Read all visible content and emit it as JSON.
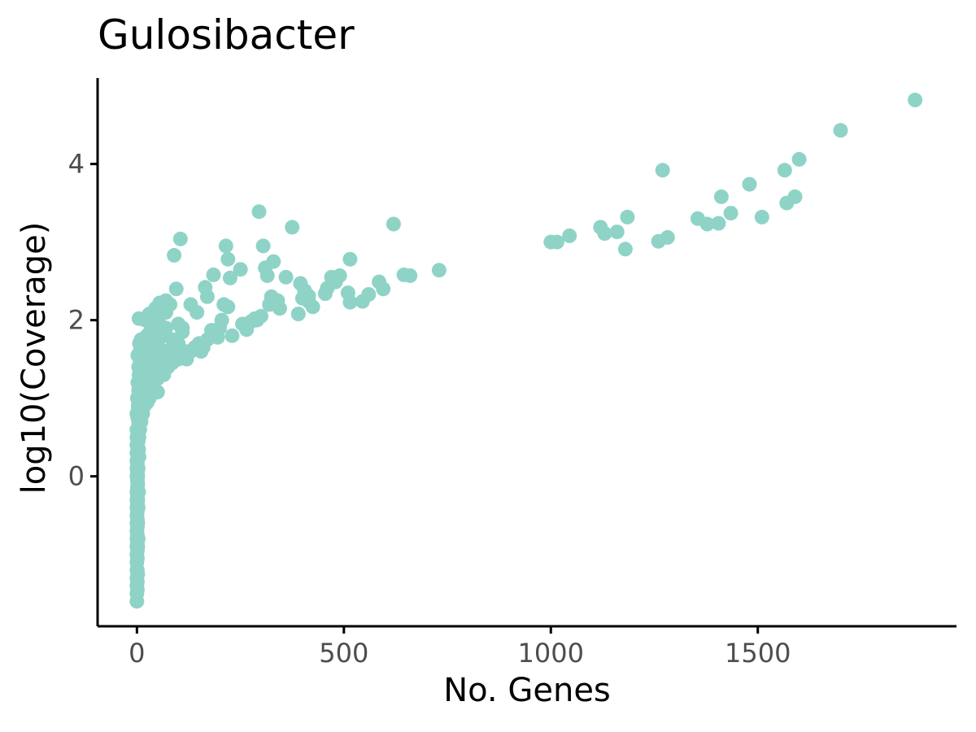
{
  "chart_data": {
    "type": "scatter",
    "title": "Gulosibacter",
    "xlabel": "No. Genes",
    "ylabel": "log10(Coverage)",
    "xlim": [
      -95,
      1980
    ],
    "ylim": [
      -1.92,
      5.1
    ],
    "x_ticks": [
      0,
      500,
      1000,
      1500
    ],
    "x_tick_labels": [
      "0",
      "500",
      "1000",
      "1500"
    ],
    "y_ticks": [
      0,
      2,
      4
    ],
    "y_tick_labels": [
      "0",
      "2",
      "4"
    ],
    "grid": false,
    "legend": "none",
    "point_color": "#8fd3c7",
    "x": [
      1880,
      1700,
      1600,
      1565,
      1590,
      1570,
      1510,
      1480,
      1435,
      1412,
      1405,
      1378,
      1355,
      1282,
      1270,
      1260,
      1185,
      1180,
      1160,
      1130,
      1120,
      1045,
      1015,
      1000,
      730,
      660,
      645,
      620,
      595,
      585,
      560,
      545,
      515,
      515,
      510,
      490,
      480,
      470,
      460,
      455,
      425,
      415,
      415,
      405,
      400,
      395,
      390,
      375,
      360,
      345,
      340,
      330,
      325,
      320,
      315,
      310,
      305,
      300,
      295,
      290,
      285,
      275,
      265,
      255,
      250,
      230,
      225,
      220,
      220,
      215,
      210,
      205,
      195,
      185,
      180,
      170,
      165,
      160,
      155,
      150,
      145,
      140,
      130,
      120,
      115,
      110,
      105,
      100,
      95,
      90,
      85,
      80,
      75,
      70,
      65,
      60,
      55,
      50,
      45,
      40,
      35,
      30,
      25,
      20,
      15,
      10,
      5,
      2,
      110,
      100,
      90,
      80,
      75,
      70,
      65,
      60,
      55,
      50,
      45,
      40,
      35,
      30,
      25,
      20,
      15,
      10,
      8,
      5,
      200,
      190,
      180,
      170,
      160,
      150,
      140,
      130,
      120,
      110,
      100,
      95,
      85,
      75,
      65,
      55,
      45,
      40,
      35,
      30,
      25,
      22,
      20,
      18,
      16,
      14,
      12,
      10,
      9,
      8,
      7,
      6,
      5,
      4,
      3,
      2,
      1,
      0,
      0,
      0,
      0,
      0,
      1,
      1,
      2,
      2,
      3,
      3,
      4,
      4,
      5,
      5,
      6,
      6,
      7,
      8,
      9,
      10,
      11,
      12,
      13,
      14,
      15,
      16,
      18,
      20,
      22,
      24,
      26,
      28,
      30,
      32,
      35,
      38,
      42,
      46,
      50,
      55,
      60,
      70,
      0,
      0,
      0,
      0,
      0,
      0,
      0,
      0,
      0,
      0,
      0,
      0,
      0,
      0,
      0,
      0,
      0,
      0,
      0,
      0,
      1,
      1,
      1,
      1,
      1,
      1,
      1,
      1,
      1,
      1,
      1,
      1,
      1,
      1,
      1,
      1,
      2,
      2,
      2,
      2,
      2,
      2,
      2,
      2,
      3,
      3,
      3,
      3,
      3,
      4,
      4,
      4,
      5,
      5,
      5,
      6,
      6,
      7,
      7,
      8,
      8,
      9,
      10,
      11,
      12,
      13,
      15,
      17,
      19,
      21,
      24,
      27,
      30,
      34,
      38,
      42,
      48,
      55,
      62,
      70
    ],
    "y": [
      4.82,
      4.43,
      4.06,
      3.92,
      3.58,
      3.5,
      3.32,
      3.74,
      3.37,
      3.58,
      3.24,
      3.23,
      3.3,
      3.06,
      3.92,
      3.01,
      3.32,
      2.91,
      3.13,
      3.11,
      3.19,
      3.08,
      3.0,
      3.0,
      2.64,
      2.57,
      2.58,
      3.23,
      2.4,
      2.49,
      2.33,
      2.24,
      2.78,
      2.23,
      2.35,
      2.57,
      2.49,
      2.55,
      2.41,
      2.34,
      2.17,
      2.24,
      2.31,
      2.38,
      2.28,
      2.47,
      2.08,
      3.19,
      2.55,
      2.15,
      2.25,
      2.75,
      2.3,
      2.2,
      2.57,
      2.67,
      2.95,
      2.05,
      3.39,
      2.0,
      2.02,
      1.98,
      1.88,
      1.95,
      2.65,
      1.8,
      2.54,
      2.78,
      2.17,
      2.95,
      2.2,
      2.0,
      1.78,
      2.58,
      1.87,
      2.3,
      2.42,
      1.65,
      1.6,
      1.7,
      2.1,
      1.65,
      2.2,
      1.5,
      1.6,
      1.9,
      3.04,
      1.7,
      2.4,
      2.83,
      1.75,
      2.2,
      1.5,
      2.25,
      1.35,
      1.6,
      2.22,
      1.08,
      2.15,
      2.1,
      1.85,
      2.08,
      1.6,
      2.0,
      1.62,
      1.75,
      2.02,
      1.55,
      1.85,
      1.95,
      1.7,
      1.5,
      1.4,
      1.6,
      1.3,
      1.55,
      1.45,
      1.25,
      1.65,
      1.2,
      1.35,
      1.4,
      1.15,
      1.3,
      1.05,
      1.2,
      1.0,
      0.95,
      1.9,
      1.85,
      1.8,
      1.75,
      1.7,
      1.7,
      1.65,
      1.6,
      1.55,
      1.6,
      1.5,
      1.55,
      1.45,
      1.45,
      1.4,
      1.35,
      1.3,
      1.2,
      1.1,
      1.0,
      0.95,
      1.1,
      1.45,
      0.9,
      1.25,
      0.8,
      1.5,
      0.7,
      1.35,
      1.6,
      0.6,
      1.7,
      0.5,
      1.4,
      0.3,
      1.2,
      1.0,
      0.8,
      0.4,
      0.1,
      -0.2,
      -0.5,
      0.6,
      0.2,
      1.0,
      -0.1,
      0.9,
      0.5,
      1.1,
      0.7,
      1.3,
      0.9,
      1.4,
      1.2,
      1.5,
      1.6,
      1.3,
      1.5,
      1.7,
      1.6,
      1.4,
      1.7,
      1.55,
      1.75,
      1.45,
      1.65,
      1.5,
      1.8,
      1.6,
      1.7,
      1.75,
      1.85,
      1.65,
      1.9,
      1.8,
      2.0,
      1.7,
      2.05,
      1.9,
      2.1,
      -1.6,
      -1.5,
      -1.4,
      -1.3,
      -1.2,
      -1.1,
      -1.0,
      -0.9,
      -0.8,
      -0.7,
      -0.6,
      -0.4,
      -0.3,
      0.0,
      0.2,
      0.3,
      0.4,
      0.5,
      0.6,
      0.8,
      -1.45,
      -1.35,
      -1.2,
      -1.05,
      -0.95,
      -0.85,
      -0.75,
      -0.65,
      -0.55,
      -0.45,
      -0.35,
      -0.25,
      -0.15,
      -0.05,
      0.05,
      0.15,
      -1.25,
      -0.9,
      -0.6,
      -0.3,
      0.0,
      0.3,
      0.55,
      0.75,
      -0.8,
      -0.4,
      0.1,
      0.45,
      0.85,
      -0.2,
      0.35,
      0.95,
      0.25,
      0.65,
      1.05,
      0.7,
      1.15,
      0.9,
      1.25,
      1.1,
      1.3,
      1.2,
      1.35,
      1.45,
      1.25,
      1.5,
      1.4,
      1.55,
      1.45,
      1.6,
      1.5,
      1.65,
      1.55,
      1.7,
      1.6,
      1.75,
      1.65,
      1.85,
      1.8,
      1.9
    ]
  }
}
